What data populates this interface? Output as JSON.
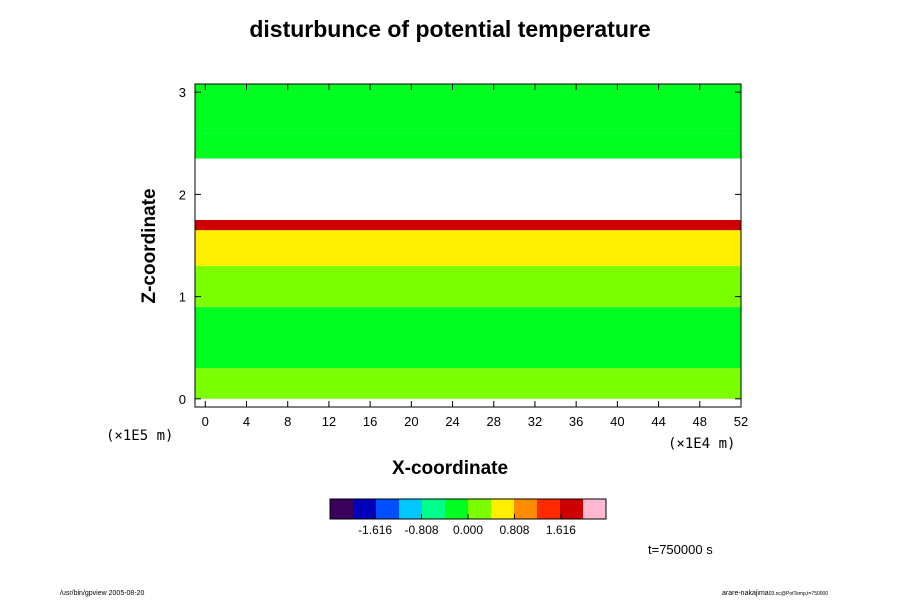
{
  "chart_data": {
    "type": "heatmap",
    "title": "disturbunce of potential temperature",
    "xlabel": "X-coordinate",
    "ylabel": "Z-coordinate",
    "x_unit": "(×1E4 m)",
    "z_unit": "(×1E5 m)",
    "xlim": [
      -1,
      52
    ],
    "ylim": [
      -0.08,
      3.08
    ],
    "x_ticks": [
      "0",
      "4",
      "8",
      "12",
      "16",
      "20",
      "24",
      "28",
      "32",
      "36",
      "40",
      "44",
      "48",
      "52"
    ],
    "y_ticks": [
      "0",
      "1",
      "2",
      "3"
    ],
    "colorbar": {
      "ticks": [
        "-1.616",
        "-0.808",
        "0.000",
        "0.808",
        "1.616"
      ],
      "range": [
        -2.4,
        2.4
      ],
      "colors": [
        "#3a005c",
        "#0000b8",
        "#0050ff",
        "#00c8ff",
        "#00ff8a",
        "#00ff20",
        "#7cff00",
        "#fff000",
        "#ff8c00",
        "#ff2a00",
        "#cc0000",
        "#ffb8d0"
      ]
    },
    "bands": [
      {
        "z": [
          0.0,
          0.3
        ],
        "value": 0.0
      },
      {
        "z": [
          0.3,
          0.9
        ],
        "value": -0.1
      },
      {
        "z": [
          0.9,
          1.3
        ],
        "value": 0.2
      },
      {
        "z": [
          1.3,
          1.65
        ],
        "value": 0.55
      },
      {
        "z": [
          1.65,
          1.75
        ],
        "value": 1.6
      },
      {
        "z": [
          2.35,
          2.6
        ],
        "value": -0.25
      },
      {
        "z": [
          2.6,
          3.1
        ],
        "value": -0.05
      }
    ],
    "undefined_band": {
      "z": [
        1.75,
        2.35
      ],
      "value": null
    }
  },
  "time_label": "t=750000 s",
  "footer_left": "/usr/bin/gpview 2005-08-20",
  "footer_right_main": "arare-nakajima",
  "footer_right_sub": "03.nc@PotTemp,t=750000"
}
